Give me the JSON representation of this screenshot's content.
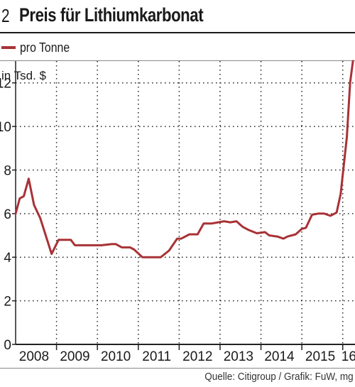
{
  "header": {
    "number": "2",
    "title": "Preis für Lithiumkarbonat"
  },
  "legend": {
    "label": "pro Tonne"
  },
  "footer": {
    "source": "Quelle: Citigroup / Grafik: FuW, mg"
  },
  "colors": {
    "series": "#a83236",
    "grid": "#222222",
    "text": "#1a1a1a"
  },
  "chart_data": {
    "type": "line",
    "title": "Preis für Lithiumkarbonat",
    "ylabel": "in Tsd. $",
    "xlabel": "",
    "ylim": [
      0,
      13
    ],
    "xlim": [
      2008.0,
      2016.3
    ],
    "grid": true,
    "legend_position": "top-left",
    "y_ticks": [
      0,
      2,
      4,
      6,
      8,
      10,
      12
    ],
    "x_tick_labels": [
      "2008",
      "2009",
      "2010",
      "2011",
      "2012",
      "2013",
      "2014",
      "2015",
      "16"
    ],
    "series": [
      {
        "name": "pro Tonne",
        "x": [
          2008.0,
          2008.1,
          2008.2,
          2008.32,
          2008.45,
          2008.6,
          2008.88,
          2009.05,
          2009.15,
          2009.35,
          2009.45,
          2009.7,
          2010.0,
          2010.1,
          2010.35,
          2010.45,
          2010.6,
          2010.8,
          2010.9,
          2011.1,
          2011.35,
          2011.45,
          2011.55,
          2011.75,
          2011.95,
          2012.05,
          2012.25,
          2012.45,
          2012.6,
          2012.8,
          2012.95,
          2013.1,
          2013.25,
          2013.4,
          2013.55,
          2013.7,
          2013.9,
          2014.1,
          2014.2,
          2014.4,
          2014.55,
          2014.65,
          2014.85,
          2015.0,
          2015.1,
          2015.25,
          2015.4,
          2015.55,
          2015.7,
          2015.85,
          2015.95,
          2016.1,
          2016.18,
          2016.25
        ],
        "y": [
          6.0,
          6.7,
          6.8,
          7.6,
          6.4,
          5.8,
          4.15,
          4.8,
          4.8,
          4.8,
          4.55,
          4.55,
          4.55,
          4.55,
          4.6,
          4.6,
          4.45,
          4.45,
          4.35,
          4.0,
          4.0,
          4.0,
          4.0,
          4.3,
          4.85,
          4.85,
          5.05,
          5.05,
          5.55,
          5.55,
          5.6,
          5.65,
          5.6,
          5.65,
          5.4,
          5.25,
          5.1,
          5.15,
          5.0,
          4.95,
          4.85,
          4.95,
          5.05,
          5.3,
          5.35,
          5.95,
          6.0,
          6.0,
          5.9,
          6.05,
          6.9,
          9.5,
          12.0,
          13.0
        ]
      }
    ]
  }
}
